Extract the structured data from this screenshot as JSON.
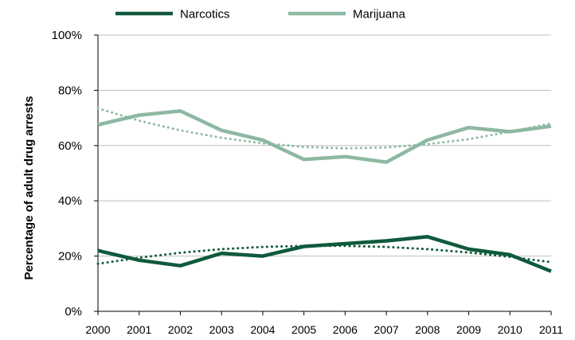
{
  "chart_data": {
    "type": "line",
    "title": "",
    "xlabel": "",
    "ylabel": "Percentage of  adult drug arrests",
    "x": [
      "2000",
      "2001",
      "2002",
      "2003",
      "2004",
      "2005",
      "2006",
      "2007",
      "2008",
      "2009",
      "2010",
      "2011"
    ],
    "ylim": [
      0,
      100
    ],
    "yticks": [
      0,
      20,
      40,
      60,
      80,
      100
    ],
    "ytick_labels": [
      "0%",
      "20%",
      "40%",
      "60%",
      "80%",
      "100%"
    ],
    "grid": "horizontal",
    "legend_position": "top",
    "series": [
      {
        "name": "Narcotics",
        "color": "#0f5a3c",
        "values": [
          22,
          18.5,
          16.5,
          21,
          20,
          23.5,
          24.5,
          25.5,
          27,
          22.5,
          20.5,
          14.5
        ],
        "trendline": [
          17.2,
          19.4,
          21.2,
          22.5,
          23.3,
          23.7,
          23.7,
          23.3,
          22.5,
          21.3,
          19.7,
          17.8
        ]
      },
      {
        "name": "Marijuana",
        "color": "#8db8a2",
        "values": [
          67.5,
          71,
          72.5,
          65.5,
          62,
          55,
          56,
          54,
          62,
          66.5,
          65,
          67
        ],
        "trendline": [
          73.5,
          69,
          65.5,
          62.8,
          60.8,
          59.5,
          59,
          59.3,
          60.5,
          62.3,
          65,
          68
        ]
      }
    ]
  }
}
